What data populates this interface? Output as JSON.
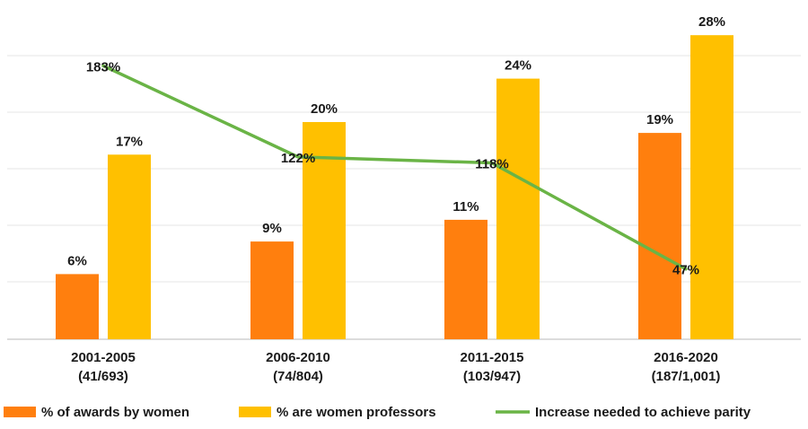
{
  "chart_data": {
    "type": "bar",
    "title": "",
    "xlabel": "",
    "ylabel": "",
    "categories": [
      [
        "2001-2005",
        "(41/693)"
      ],
      [
        "2006-2010",
        "(74/804)"
      ],
      [
        "2011-2015",
        "(103/947)"
      ],
      [
        "2016-2020",
        "(187/1,001)"
      ]
    ],
    "bar_series": [
      {
        "name": "% of awards by women",
        "color": "#ff7f0e",
        "values": [
          6,
          9,
          11,
          19
        ],
        "labels": [
          "6%",
          "9%",
          "11%",
          "19%"
        ]
      },
      {
        "name": "% are women professors",
        "color": "#ffc000",
        "values": [
          17,
          20,
          24,
          28
        ],
        "labels": [
          "17%",
          "20%",
          "24%",
          "28%"
        ]
      }
    ],
    "bar_ylim": [
      0,
      30
    ],
    "line_series": {
      "name": "Increase needed to achieve parity",
      "color": "#6ab446",
      "values": [
        183,
        122,
        118,
        47
      ],
      "labels": [
        "183%",
        "122%",
        "118%",
        "47%"
      ]
    },
    "line_ylim": [
      0,
      200
    ],
    "grid": true,
    "legend_position": "bottom"
  }
}
